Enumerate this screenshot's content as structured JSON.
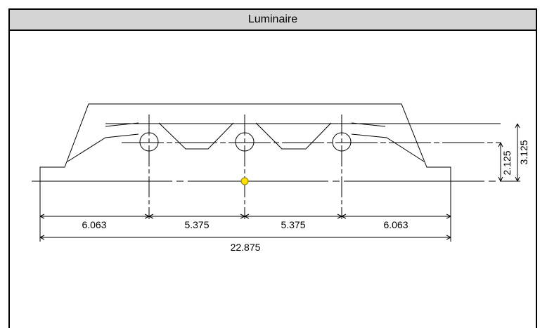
{
  "panel": {
    "title": "Luminaire"
  },
  "dimensions": {
    "horizontal": [
      "6.063",
      "5.375",
      "5.375",
      "6.063"
    ],
    "overall": "22.875",
    "vertical": [
      "2.125",
      "3.125"
    ]
  },
  "colors": {
    "origin_marker": "#ffe000",
    "line": "#000000",
    "title_bg": "#d4d4d4"
  }
}
